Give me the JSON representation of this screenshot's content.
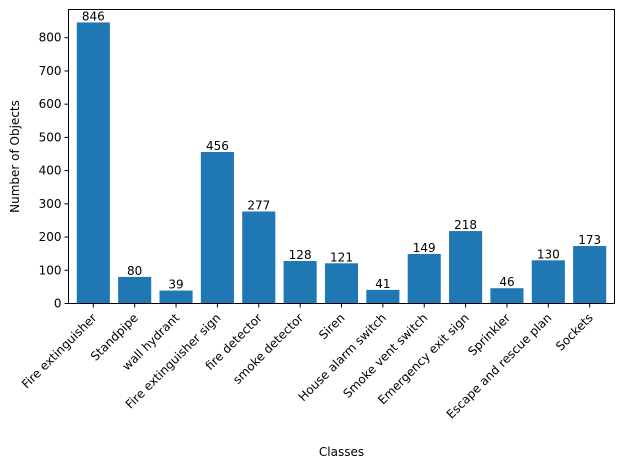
{
  "colors": {
    "bar": "#1f77b4",
    "axis": "#000000",
    "background": "#ffffff"
  },
  "chart_data": {
    "type": "bar",
    "title": "",
    "xlabel": "Classes",
    "ylabel": "Number of Objects",
    "ylim": [
      0,
      885
    ],
    "yticks": [
      0,
      100,
      200,
      300,
      400,
      500,
      600,
      700,
      800
    ],
    "grid": false,
    "legend": "none",
    "categories": [
      "Fire extinguisher",
      "Standpipe",
      "wall hydrant",
      "Fire extinguisher sign",
      "fire detector",
      "smoke detector",
      "Siren",
      "House alarm switch",
      "Smoke vent switch",
      "Emergency exit sign",
      "Sprinkler",
      "Escape and rescue plan",
      "Sockets"
    ],
    "values": [
      846,
      80,
      39,
      456,
      277,
      128,
      121,
      41,
      149,
      218,
      46,
      130,
      173
    ],
    "data_labels": [
      "846",
      "80",
      "39",
      "456",
      "277",
      "128",
      "121",
      "41",
      "149",
      "218",
      "46",
      "130",
      "173"
    ]
  }
}
